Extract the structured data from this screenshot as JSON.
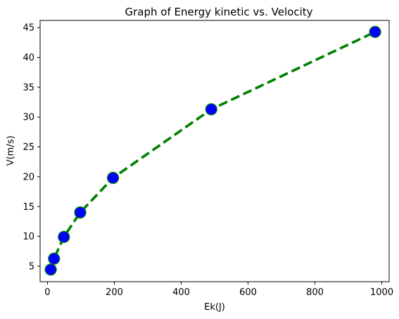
{
  "chart_data": {
    "type": "line",
    "title": "Graph of Energy kinetic vs. Velocity",
    "xlabel": "Ek(J)",
    "ylabel": "V(m/s)",
    "xlim": [
      -22,
      1022
    ],
    "ylim": [
      2.4,
      46.2
    ],
    "xticks": [
      "0",
      "200",
      "400",
      "600",
      "800",
      "1000"
    ],
    "yticks": [
      "5",
      "10",
      "15",
      "20",
      "25",
      "30",
      "35",
      "40",
      "45"
    ],
    "grid": false,
    "legend": false,
    "series": [
      {
        "x": [
          9.8,
          19.6,
          49,
          98,
          196,
          490,
          980
        ],
        "y": [
          4.43,
          6.26,
          9.9,
          14.0,
          19.8,
          31.3,
          44.27
        ],
        "line_style": "dashed",
        "line_color": "#008000",
        "marker": "circle",
        "marker_face_color": "#0000ff",
        "marker_edge_color": "#008000"
      }
    ]
  }
}
